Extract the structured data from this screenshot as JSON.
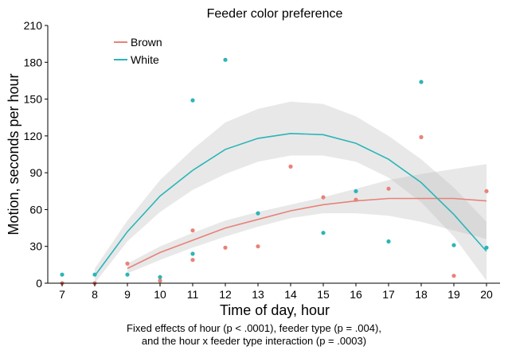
{
  "chart_data": {
    "type": "scatter",
    "title": "Feeder color preference",
    "xlabel": "Time of day, hour",
    "ylabel": "Motion, seconds per hour",
    "xlim": [
      7,
      20
    ],
    "ylim": [
      0,
      210
    ],
    "xticks": [
      7,
      8,
      9,
      10,
      11,
      12,
      13,
      14,
      15,
      16,
      17,
      18,
      19,
      20
    ],
    "yticks": [
      0,
      30,
      60,
      90,
      120,
      150,
      180,
      210
    ],
    "legend_position": "top-left",
    "grid": false,
    "series": [
      {
        "name": "Brown",
        "color": "#E8827A",
        "points": [
          [
            7,
            0
          ],
          [
            8,
            0
          ],
          [
            9,
            16
          ],
          [
            10,
            2
          ],
          [
            11,
            43
          ],
          [
            11,
            19
          ],
          [
            12,
            29
          ],
          [
            13,
            30
          ],
          [
            14,
            95
          ],
          [
            15,
            70
          ],
          [
            16,
            68
          ],
          [
            17,
            77
          ],
          [
            18,
            119
          ],
          [
            19,
            6
          ],
          [
            20,
            75
          ]
        ],
        "fit": {
          "x": [
            9,
            10,
            11,
            12,
            13,
            14,
            15,
            16,
            17,
            18,
            19,
            20
          ],
          "y": [
            12,
            25,
            35,
            45,
            52,
            59,
            64,
            67,
            69,
            69,
            69,
            67
          ],
          "ci_low": [
            8,
            19,
            29,
            38,
            46,
            53,
            57,
            57,
            55,
            50,
            43,
            36
          ],
          "ci_high": [
            16,
            30,
            41,
            51,
            58,
            64,
            70,
            77,
            84,
            89,
            93,
            97
          ]
        }
      },
      {
        "name": "White",
        "color": "#2BB5B8",
        "points": [
          [
            7,
            7
          ],
          [
            8,
            7
          ],
          [
            9,
            7
          ],
          [
            10,
            5
          ],
          [
            11,
            149
          ],
          [
            11,
            24
          ],
          [
            12,
            182
          ],
          [
            13,
            57
          ],
          [
            15,
            41
          ],
          [
            16,
            75
          ],
          [
            17,
            34
          ],
          [
            18,
            164
          ],
          [
            19,
            31
          ],
          [
            20,
            29
          ]
        ],
        "fit": {
          "x": [
            8,
            9,
            10,
            11,
            12,
            13,
            14,
            15,
            16,
            17,
            18,
            19,
            20
          ],
          "y": [
            6,
            42,
            71,
            92,
            109,
            118,
            122,
            121,
            114,
            101,
            82,
            56,
            26
          ],
          "ci_low": [
            0,
            34,
            58,
            76,
            89,
            99,
            104,
            104,
            99,
            86,
            66,
            38,
            2
          ],
          "ci_high": [
            12,
            51,
            84,
            109,
            131,
            142,
            148,
            146,
            136,
            120,
            101,
            78,
            50
          ]
        }
      }
    ],
    "caption": [
      "Fixed effects of hour (p < .0001), feeder type (p = .004),",
      "and the hour x feeder type interaction (p = .0003)"
    ]
  }
}
